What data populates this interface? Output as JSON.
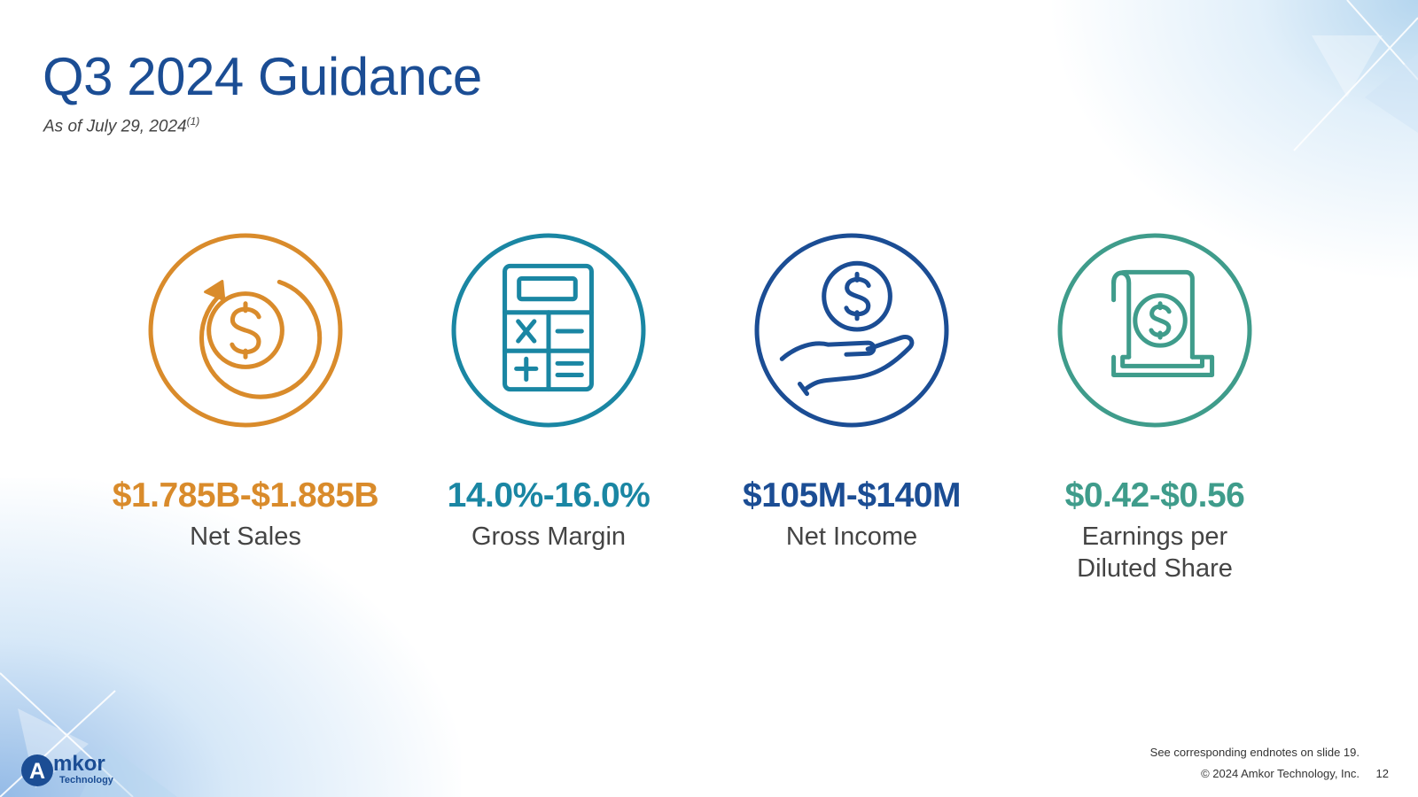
{
  "slide": {
    "title": "Q3 2024 Guidance",
    "subtitle": "As of July 29, 2024",
    "subtitle_note": "(1)"
  },
  "metrics": [
    {
      "value": "$1.785B-$1.885B",
      "label": "Net Sales",
      "color": "#d98b2b",
      "icon": "dollar-cycle-icon"
    },
    {
      "value": "14.0%-16.0%",
      "label": "Gross Margin",
      "color": "#1a86a3",
      "icon": "calculator-icon"
    },
    {
      "value": "$105M-$140M",
      "label": "Net Income",
      "color": "#1b4d94",
      "icon": "hand-coin-icon"
    },
    {
      "value": "$0.42-$0.56",
      "label": "Earnings per Diluted Share",
      "color": "#3f9c8b",
      "icon": "dollar-scroll-icon"
    }
  ],
  "footer": {
    "endnote": "See corresponding endnotes on slide 19.",
    "copyright": "© 2024 Amkor Technology, Inc.",
    "page_number": "12"
  },
  "logo": {
    "name": "Amkor",
    "tagline": "Technology",
    "color": "#1b4d94"
  }
}
